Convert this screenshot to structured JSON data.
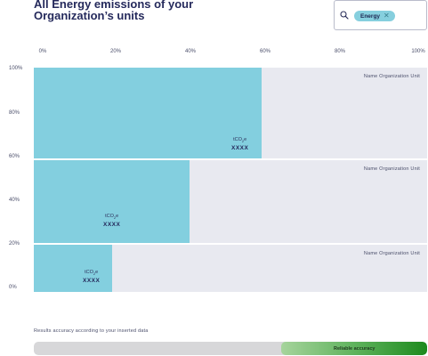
{
  "header": {
    "title_line1": "All Energy emissions of your",
    "title_line2": "Organization’s units"
  },
  "filter": {
    "chip_label": "Energy",
    "remove_glyph": "✕"
  },
  "x_ticks": [
    "0%",
    "20%",
    "40%",
    "60%",
    "80%",
    "100%"
  ],
  "y_ticks": [
    "100%",
    "80%",
    "60%",
    "40%",
    "20%",
    "0%"
  ],
  "units": [
    {
      "name": "Name Organization Unit",
      "unit_label": "tCO",
      "unit_sub": "2",
      "unit_suffix": "e",
      "value": "XXXX",
      "share_pct": 58
    },
    {
      "name": "Name Organization Unit",
      "unit_label": "tCO",
      "unit_sub": "2",
      "unit_suffix": "e",
      "value": "XXXX",
      "share_pct": 39.5
    },
    {
      "name": "Name Organization Unit",
      "unit_label": "tCO",
      "unit_sub": "2",
      "unit_suffix": "e",
      "value": "XXXX",
      "share_pct": 20
    }
  ],
  "accuracy": {
    "label": "Results accuracy according to your inserted data",
    "level_text": "Reliable accuracy",
    "level_pct": 37
  },
  "colors": {
    "bar": "#83cfdf",
    "track": "#e8e9f0",
    "title": "#252a5c"
  },
  "icons": {
    "search": "search-icon",
    "remove": "close-icon"
  }
}
